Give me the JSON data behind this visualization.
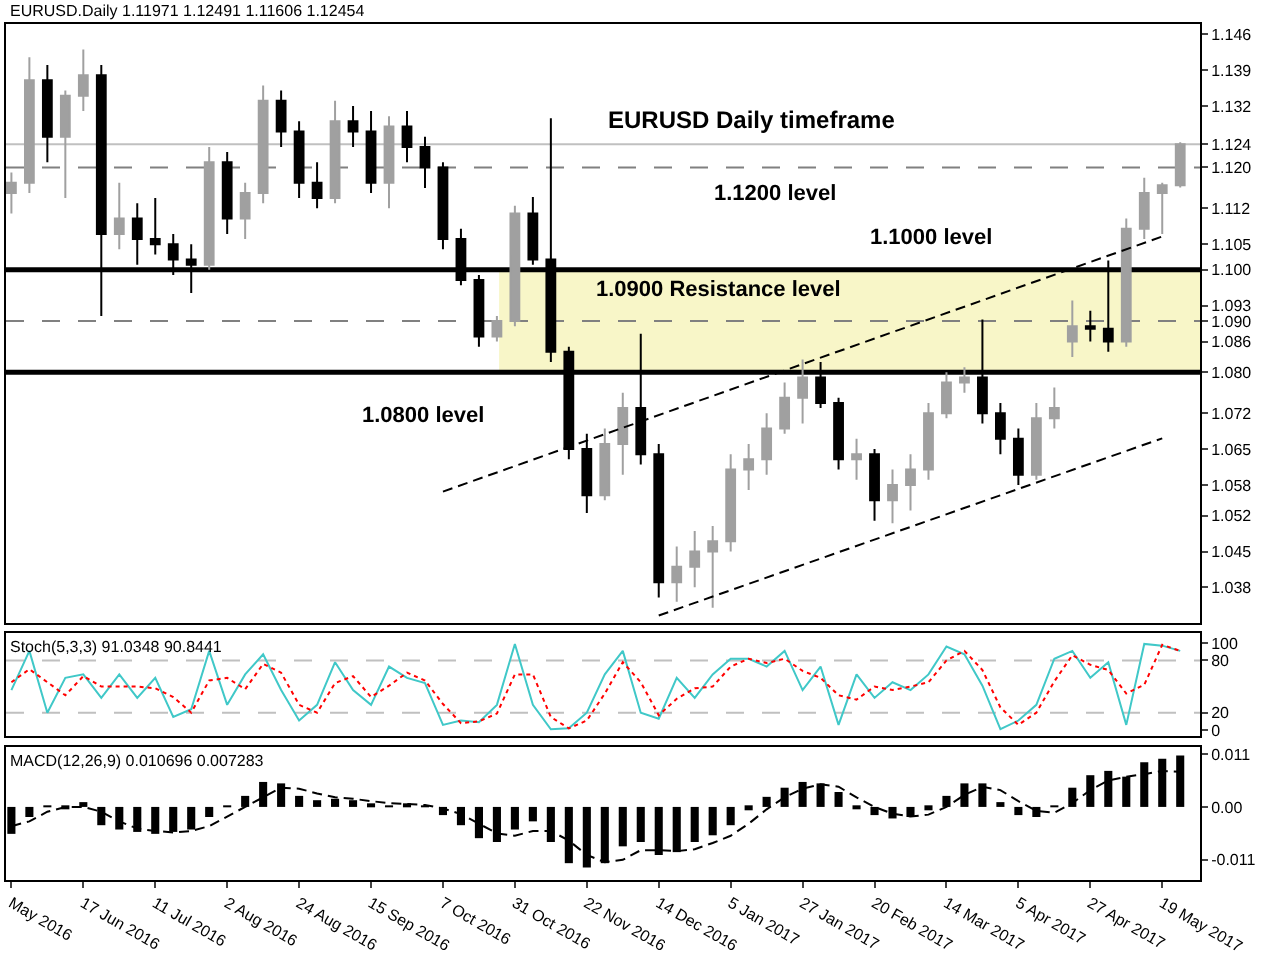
{
  "chart_data": [
    {
      "type": "candlestick",
      "title": "EURUSD.Daily 1.11971 1.12491 1.11606 1.12454",
      "categories": [
        "May 2016",
        null,
        null,
        null,
        "17 Jun 2016",
        null,
        null,
        null,
        "11 Jul 2016",
        null,
        null,
        null,
        "2 Aug 2016",
        null,
        null,
        null,
        "24 Aug 2016",
        null,
        null,
        null,
        "15 Sep 2016",
        null,
        null,
        null,
        "7 Oct 2016",
        null,
        null,
        null,
        "31 Oct 2016",
        null,
        null,
        null,
        "22 Nov 2016",
        null,
        null,
        null,
        "14 Dec 2016",
        null,
        null,
        null,
        "5 Jan 2017",
        null,
        null,
        null,
        "27 Jan 2017",
        null,
        null,
        null,
        "20 Feb 2017",
        null,
        null,
        null,
        "14 Mar 2017",
        null,
        null,
        null,
        "5 Apr 2017",
        null,
        null,
        null,
        "27 Apr 2017",
        null,
        null,
        null,
        "19 May 2017",
        null
      ],
      "ohlc": [
        [
          1.115,
          1.119,
          1.111,
          1.117
        ],
        [
          1.117,
          1.1415,
          1.115,
          1.137
        ],
        [
          1.137,
          1.14,
          1.121,
          1.126
        ],
        [
          1.126,
          1.135,
          1.114,
          1.134
        ],
        [
          1.134,
          1.143,
          1.131,
          1.138
        ],
        [
          1.138,
          1.14,
          1.091,
          1.107
        ],
        [
          1.107,
          1.117,
          1.104,
          1.11
        ],
        [
          1.11,
          1.113,
          1.101,
          1.106
        ],
        [
          1.106,
          1.114,
          1.103,
          1.105
        ],
        [
          1.105,
          1.107,
          1.099,
          1.102
        ],
        [
          1.102,
          1.105,
          1.0955,
          1.101
        ],
        [
          1.101,
          1.124,
          1.1,
          1.121
        ],
        [
          1.121,
          1.123,
          1.107,
          1.11
        ],
        [
          1.11,
          1.117,
          1.106,
          1.115
        ],
        [
          1.115,
          1.136,
          1.113,
          1.133
        ],
        [
          1.133,
          1.135,
          1.124,
          1.127
        ],
        [
          1.127,
          1.129,
          1.114,
          1.117
        ],
        [
          1.117,
          1.121,
          1.112,
          1.114
        ],
        [
          1.114,
          1.133,
          1.113,
          1.129
        ],
        [
          1.129,
          1.132,
          1.124,
          1.127
        ],
        [
          1.127,
          1.131,
          1.115,
          1.117
        ],
        [
          1.117,
          1.13,
          1.112,
          1.128
        ],
        [
          1.128,
          1.131,
          1.121,
          1.124
        ],
        [
          1.124,
          1.126,
          1.116,
          1.12
        ],
        [
          1.12,
          1.121,
          1.104,
          1.106
        ],
        [
          1.106,
          1.108,
          1.097,
          1.098
        ],
        [
          1.098,
          1.099,
          1.085,
          1.087
        ],
        [
          1.087,
          1.091,
          1.086,
          1.09
        ],
        [
          1.09,
          1.1125,
          1.089,
          1.111
        ],
        [
          1.111,
          1.1142,
          1.101,
          1.102
        ],
        [
          1.102,
          1.1296,
          1.082,
          1.084
        ],
        [
          1.084,
          1.085,
          1.063,
          1.065
        ],
        [
          1.065,
          1.068,
          1.0525,
          1.056
        ],
        [
          1.056,
          1.069,
          1.055,
          1.066
        ],
        [
          1.066,
          1.076,
          1.06,
          1.073
        ],
        [
          1.073,
          1.0875,
          1.062,
          1.064
        ],
        [
          1.064,
          1.066,
          1.036,
          1.039
        ],
        [
          1.039,
          1.046,
          1.0352,
          1.042
        ],
        [
          1.042,
          1.049,
          1.038,
          1.045
        ],
        [
          1.045,
          1.05,
          1.034,
          1.047
        ],
        [
          1.047,
          1.064,
          1.045,
          1.061
        ],
        [
          1.061,
          1.066,
          1.057,
          1.063
        ],
        [
          1.063,
          1.072,
          1.06,
          1.069
        ],
        [
          1.069,
          1.078,
          1.068,
          1.075
        ],
        [
          1.075,
          1.0825,
          1.07,
          1.079
        ],
        [
          1.079,
          1.082,
          1.073,
          1.074
        ],
        [
          1.074,
          1.075,
          1.061,
          1.063
        ],
        [
          1.063,
          1.067,
          1.059,
          1.064
        ],
        [
          1.064,
          1.065,
          1.051,
          1.055
        ],
        [
          1.055,
          1.061,
          1.0505,
          1.058
        ],
        [
          1.058,
          1.064,
          1.053,
          1.061
        ],
        [
          1.061,
          1.074,
          1.059,
          1.072
        ],
        [
          1.072,
          1.08,
          1.071,
          1.078
        ],
        [
          1.078,
          1.081,
          1.076,
          1.079
        ],
        [
          1.079,
          1.0903,
          1.07,
          1.072
        ],
        [
          1.072,
          1.074,
          1.064,
          1.067
        ],
        [
          1.067,
          1.069,
          1.058,
          1.06
        ],
        [
          1.06,
          1.074,
          1.059,
          1.071
        ],
        [
          1.071,
          1.077,
          1.069,
          1.073
        ],
        [
          1.086,
          1.094,
          1.083,
          1.089
        ],
        [
          1.089,
          1.092,
          1.086,
          1.0885
        ],
        [
          1.0885,
          1.1018,
          1.084,
          1.086
        ],
        [
          1.086,
          1.11,
          1.085,
          1.108
        ],
        [
          1.108,
          1.118,
          1.106,
          1.115
        ],
        [
          1.115,
          1.117,
          1.107,
          1.1165
        ],
        [
          1.1165,
          1.12491,
          1.11606,
          1.12454
        ]
      ],
      "colors": [
        "#a0a0a0",
        "#a0a0a0",
        "#000000",
        "#a0a0a0",
        "#a0a0a0",
        "#000000",
        "#a0a0a0",
        "#000000",
        "#000000",
        "#000000",
        "#000000",
        "#a0a0a0",
        "#000000",
        "#a0a0a0",
        "#a0a0a0",
        "#000000",
        "#000000",
        "#000000",
        "#a0a0a0",
        "#000000",
        "#000000",
        "#a0a0a0",
        "#000000",
        "#000000",
        "#000000",
        "#000000",
        "#000000",
        "#a0a0a0",
        "#a0a0a0",
        "#000000",
        "#000000",
        "#000000",
        "#000000",
        "#a0a0a0",
        "#a0a0a0",
        "#000000",
        "#000000",
        "#a0a0a0",
        "#a0a0a0",
        "#a0a0a0",
        "#a0a0a0",
        "#a0a0a0",
        "#a0a0a0",
        "#a0a0a0",
        "#a0a0a0",
        "#000000",
        "#000000",
        "#a0a0a0",
        "#000000",
        "#a0a0a0",
        "#a0a0a0",
        "#a0a0a0",
        "#a0a0a0",
        "#a0a0a0",
        "#000000",
        "#000000",
        "#000000",
        "#a0a0a0",
        "#a0a0a0",
        "#a0a0a0",
        "#000000",
        "#000000",
        "#a0a0a0",
        "#a0a0a0",
        "#a0a0a0",
        "#a0a0a0"
      ],
      "series": [
        {
          "type": "line",
          "x": [
            "7 Oct 2016",
            "19 May 2017"
          ],
          "values": [
            1.0567,
            1.1065
          ],
          "color": "#000000",
          "line_style": "dashed"
        },
        {
          "type": "line",
          "x": [
            "14 Dec 2016",
            "19 May 2017"
          ],
          "values": [
            1.0325,
            1.0671
          ],
          "color": "#000000",
          "line_style": "dashed"
        }
      ],
      "ylim": [
        1.031,
        1.148
      ],
      "yticks": [
        1.038,
        1.045,
        1.052,
        1.058,
        1.065,
        1.072,
        {
          "value": 1.08,
          "label": "1.080"
        },
        1.086,
        {
          "value": 1.09,
          "label": "1.090"
        },
        1.093,
        {
          "value": 1.1,
          "label": "1.100"
        },
        1.105,
        1.112,
        {
          "value": 1.12,
          "label": "1.120"
        },
        {
          "value": 1.1245,
          "label": "1.124"
        },
        1.132,
        1.139,
        1.146
      ],
      "ref_lines": [
        {
          "axis": "y",
          "value": 1.12,
          "label": "1.1200 level",
          "color": "#808080",
          "line_style": "dashed"
        },
        {
          "axis": "y",
          "value": 1.1,
          "label": "1.1000 level",
          "color": "#000000",
          "line_style": "solid"
        },
        {
          "axis": "y",
          "value": 1.09,
          "color": "#808080",
          "line_style": "dashed"
        },
        {
          "axis": "y",
          "value": 1.08,
          "label": "1.0800 level",
          "color": "#000000",
          "line_style": "solid"
        },
        {
          "axis": "y",
          "value": 1.1245,
          "color": "#c0c0c0",
          "line_style": "solid"
        }
      ],
      "bands": [
        {
          "axis": "y",
          "from": 1.08,
          "to": 1.1,
          "label": "1.0900 Resistance level",
          "color": "#f8f6c8"
        }
      ],
      "annotations": [
        "EURUSD Daily timeframe"
      ],
      "tick_labels": "y"
    },
    {
      "type": "line",
      "title": "Stoch(5,3,3) 91.0348 90.8441",
      "categories": [
        "May 2016",
        null,
        null,
        null,
        "17 Jun 2016",
        null,
        null,
        null,
        "11 Jul 2016",
        null,
        null,
        null,
        "2 Aug 2016",
        null,
        null,
        null,
        "24 Aug 2016",
        null,
        null,
        null,
        "15 Sep 2016",
        null,
        null,
        null,
        "7 Oct 2016",
        null,
        null,
        null,
        "31 Oct 2016",
        null,
        null,
        null,
        "22 Nov 2016",
        null,
        null,
        null,
        "14 Dec 2016",
        null,
        null,
        null,
        "5 Jan 2017",
        null,
        null,
        null,
        "27 Jan 2017",
        null,
        null,
        null,
        "20 Feb 2017",
        null,
        null,
        null,
        "14 Mar 2017",
        null,
        null,
        null,
        "5 Apr 2017",
        null,
        null,
        null,
        "27 Apr 2017",
        null,
        null,
        null,
        "19 May 2017",
        null
      ],
      "series": [
        {
          "color": "#40c8c8",
          "line_style": "solid",
          "values": [
            46,
            91,
            20,
            60,
            64,
            37,
            64,
            37,
            60,
            15,
            24,
            91,
            29,
            64,
            87,
            46,
            11,
            29,
            78,
            46,
            29,
            73,
            60,
            54,
            6,
            11,
            9,
            29,
            99,
            29,
            1,
            2,
            20,
            64,
            91,
            20,
            13,
            60,
            37,
            64,
            82,
            82,
            73,
            91,
            46,
            73,
            6,
            64,
            37,
            55,
            46,
            64,
            96,
            87,
            51,
            1,
            11,
            29,
            82,
            91,
            60,
            78,
            6,
            99,
            97,
            91
          ]
        },
        {
          "color": "#ff0000",
          "line_style": "dotted",
          "values": [
            55,
            70,
            55,
            40,
            62,
            50,
            50,
            50,
            48,
            38,
            20,
            57,
            60,
            47,
            76,
            66,
            29,
            20,
            54,
            62,
            38,
            51,
            66,
            57,
            30,
            8,
            10,
            19,
            64,
            64,
            15,
            2,
            11,
            42,
            78,
            55,
            17,
            36,
            48,
            50,
            73,
            82,
            77,
            82,
            68,
            60,
            40,
            35,
            50,
            46,
            50,
            55,
            80,
            91,
            69,
            26,
            6,
            20,
            56,
            86,
            75,
            69,
            42,
            52,
            98,
            91
          ]
        }
      ],
      "ylim": [
        -7,
        111
      ],
      "yticks": [
        0,
        20,
        80,
        100
      ],
      "ref_lines": [
        {
          "axis": "y",
          "value": 80,
          "color": "#c0c0c0",
          "line_style": "dashed"
        },
        {
          "axis": "y",
          "value": 20,
          "color": "#c0c0c0",
          "line_style": "dashed"
        }
      ],
      "tick_labels": "y"
    },
    {
      "type": "bar",
      "title": "MACD(12,26,9) 0.010696 0.007283",
      "categories": [
        "May 2016",
        null,
        null,
        null,
        "17 Jun 2016",
        null,
        null,
        null,
        "11 Jul 2016",
        null,
        null,
        null,
        "2 Aug 2016",
        null,
        null,
        null,
        "24 Aug 2016",
        null,
        null,
        null,
        "15 Sep 2016",
        null,
        null,
        null,
        "7 Oct 2016",
        null,
        null,
        null,
        "31 Oct 2016",
        null,
        null,
        null,
        "22 Nov 2016",
        null,
        null,
        null,
        "14 Dec 2016",
        null,
        null,
        null,
        "5 Jan 2017",
        null,
        null,
        null,
        "27 Jan 2017",
        null,
        null,
        null,
        "20 Feb 2017",
        null,
        null,
        null,
        "14 Mar 2017",
        null,
        null,
        null,
        "5 Apr 2017",
        null,
        null,
        null,
        "27 Apr 2017",
        null,
        null,
        null,
        "19 May 2017",
        null
      ],
      "series": [
        {
          "color": "#000000",
          "values": [
            -0.0056,
            -0.0021,
            0.0003,
            -0.0003,
            0.001,
            -0.0038,
            -0.0047,
            -0.0052,
            -0.0056,
            -0.0052,
            -0.0047,
            -0.0021,
            0.0002,
            0.0023,
            0.0052,
            0.0049,
            0.0023,
            0.0014,
            0.0017,
            0.0014,
            0.0005,
            0.0003,
            0.0005,
            0.0001,
            -0.0017,
            -0.0038,
            -0.0065,
            -0.0073,
            -0.0047,
            -0.003,
            -0.0073,
            -0.0117,
            -0.0126,
            -0.0117,
            -0.0082,
            -0.0073,
            -0.01,
            -0.0094,
            -0.0073,
            -0.0059,
            -0.0038,
            -0.0007,
            0.0021,
            0.004,
            0.0052,
            0.0049,
            0.0031,
            -0.0002,
            -0.0017,
            -0.0024,
            -0.0021,
            -0.0007,
            0.0023,
            0.0049,
            0.0049,
            0.001,
            -0.0017,
            -0.0021,
            0.0001,
            0.004,
            0.0066,
            0.0075,
            0.0063,
            0.0093,
            0.01,
            0.0107
          ]
        },
        {
          "type": "line",
          "color": "#000000",
          "line_style": "dashed",
          "values": [
            -0.004,
            -0.003,
            -0.001,
            0,
            0,
            -0.001,
            -0.003,
            -0.0045,
            -0.005,
            -0.0053,
            -0.005,
            -0.004,
            -0.002,
            0,
            0.002,
            0.004,
            0.0038,
            0.0028,
            0.002,
            0.0017,
            0.0012,
            0.0008,
            0.0006,
            0.0004,
            -0.0003,
            -0.0015,
            -0.0035,
            -0.0055,
            -0.006,
            -0.005,
            -0.005,
            -0.007,
            -0.01,
            -0.0115,
            -0.011,
            -0.009,
            -0.009,
            -0.0092,
            -0.0088,
            -0.0075,
            -0.006,
            -0.0035,
            -0.0005,
            0.002,
            0.0038,
            0.0047,
            0.0042,
            0.002,
            0,
            -0.0014,
            -0.002,
            -0.0016,
            0,
            0.0025,
            0.0042,
            0.0035,
            0.0012,
            -0.0008,
            -0.0012,
            0.0008,
            0.0035,
            0.0055,
            0.0063,
            0.0068,
            0.0075,
            0.0073
          ]
        }
      ],
      "ylim": [
        -0.0152,
        0.0124
      ],
      "yticks": [
        {
          "value": -0.011,
          "label": "-0.011"
        },
        {
          "value": 0,
          "label": "0.00"
        },
        0.011
      ]
    }
  ]
}
